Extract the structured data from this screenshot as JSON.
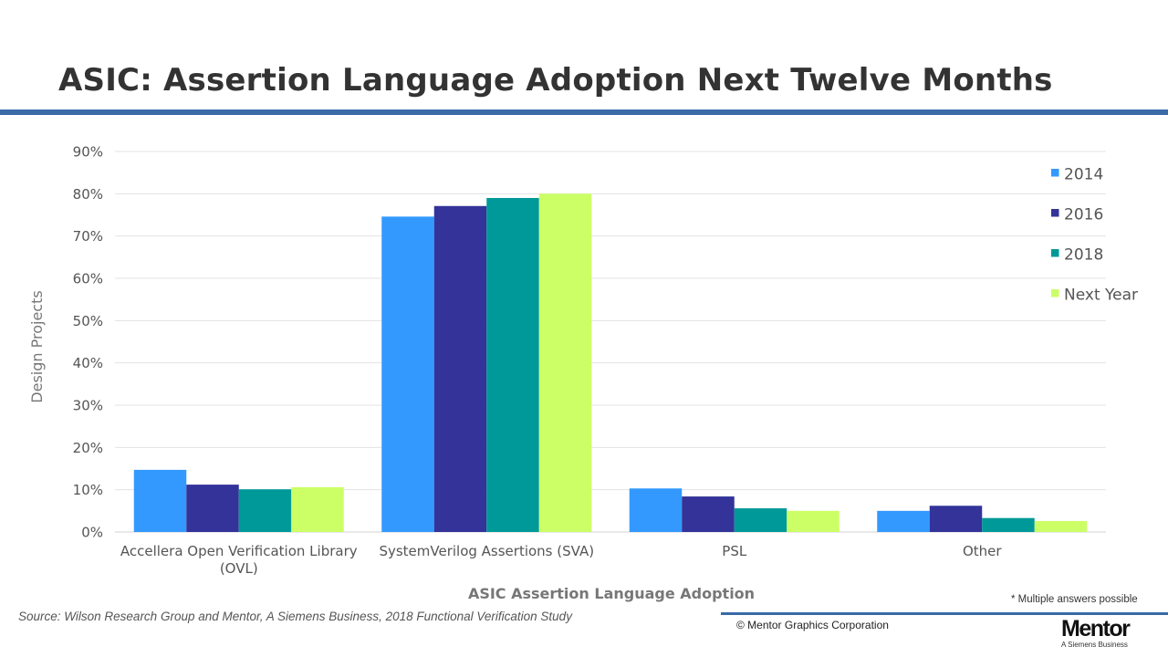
{
  "slide": {
    "title": "ASIC: Assertion Language Adoption Next Twelve Months",
    "source": "Source:  Wilson Research Group and Mentor, A Siemens Business, 2018 Functional Verification Study",
    "note": "* Multiple answers possible",
    "copyright": "© Mentor Graphics Corporation",
    "brand": {
      "name": "Mentor",
      "tagline": "A Siemens Business"
    }
  },
  "chart_data": {
    "type": "bar",
    "title": "",
    "xlabel": "ASIC Assertion Language Adoption",
    "ylabel": "Design Projects",
    "ylim": [
      0,
      90
    ],
    "yticks": [
      "0%",
      "10%",
      "20%",
      "30%",
      "40%",
      "50%",
      "60%",
      "70%",
      "80%",
      "90%"
    ],
    "grid": true,
    "legend": "right",
    "categories": [
      [
        "Accellera Open Verification Library",
        "(OVL)"
      ],
      [
        "SystemVerilog Assertions (SVA)"
      ],
      [
        "PSL"
      ],
      [
        "Other"
      ]
    ],
    "series": [
      {
        "name": "2014",
        "color": "#3399ff",
        "values": [
          14.7,
          74.6,
          10.3,
          5.0
        ]
      },
      {
        "name": "2016",
        "color": "#333399",
        "values": [
          11.2,
          77.1,
          8.4,
          6.2
        ]
      },
      {
        "name": "2018",
        "color": "#009999",
        "values": [
          10.1,
          79.0,
          5.6,
          3.3
        ]
      },
      {
        "name": "Next Year",
        "color": "#ccff66",
        "values": [
          10.6,
          80.0,
          5.0,
          2.6
        ]
      }
    ]
  }
}
